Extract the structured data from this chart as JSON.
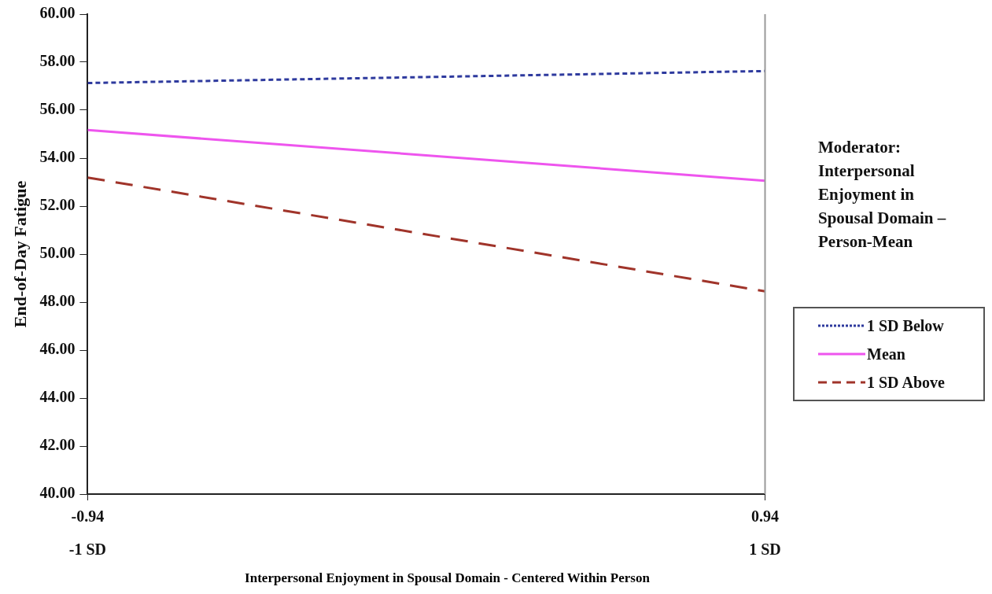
{
  "chart_data": {
    "type": "line",
    "xlabel": "Interpersonal Enjoyment in Spousal Domain - Centered Within Person",
    "ylabel": "End-of-Day Fatigue",
    "legend_title": "Moderator: Interpersonal Enjoyment in Spousal Domain – Person-Mean",
    "legend": "right",
    "grid": false,
    "marker": "none",
    "x": [
      -0.94,
      0.94
    ],
    "xlim": [
      -0.94,
      0.94
    ],
    "xticks": [
      -0.94,
      0.94
    ],
    "annotations": [
      "-1 SD",
      "1 SD"
    ],
    "ylim": [
      40,
      60
    ],
    "yticks": [
      {
        "value": 40,
        "label": "40.00"
      },
      {
        "value": 42,
        "label": "42.00"
      },
      {
        "value": 44,
        "label": "44.00"
      },
      {
        "value": 46,
        "label": "46.00"
      },
      {
        "value": 48,
        "label": "48.00"
      },
      {
        "value": 50,
        "label": "50.00"
      },
      {
        "value": 52,
        "label": "52.00"
      },
      {
        "value": 54,
        "label": "54.00"
      },
      {
        "value": 56,
        "label": "56.00"
      },
      {
        "value": 58,
        "label": "58.00"
      },
      {
        "value": 60,
        "label": "60.00"
      }
    ],
    "series": [
      {
        "name": "1 SD Below",
        "color": "#2e3a9e",
        "line_style": "dotted",
        "values": [
          57.13,
          57.63
        ]
      },
      {
        "name": "Mean",
        "color": "#ee55ee",
        "line_style": "solid",
        "values": [
          55.17,
          53.06
        ]
      },
      {
        "name": "1 SD Above",
        "color": "#a0342a",
        "line_style": "dashed",
        "values": [
          53.19,
          48.45
        ]
      }
    ]
  }
}
